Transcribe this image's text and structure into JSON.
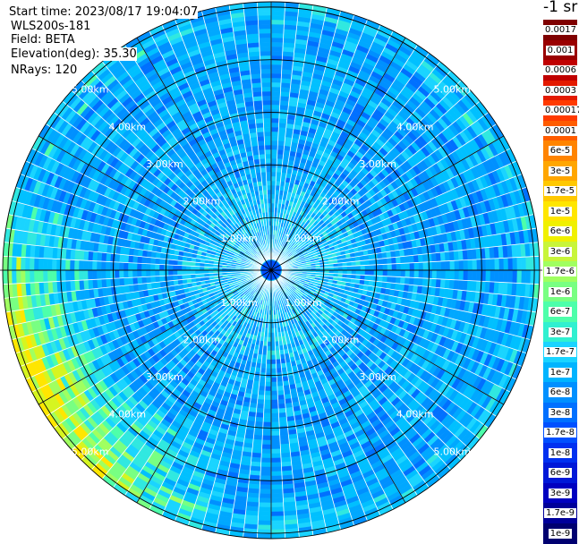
{
  "header": {
    "start_time": "Start time: 2023/08/17 19:04:07",
    "device": "WLS200s-181",
    "field": "Field: BETA",
    "elevation": "Elevation(deg): 35.30",
    "nrays": "NRays: 120"
  },
  "colorbar": {
    "unit": "-1 sr",
    "ticks": [
      "0.0017",
      "0.001",
      "0.0006",
      "0.0003",
      "0.00017",
      "0.0001",
      "6e-5",
      "3e-5",
      "1.7e-5",
      "1e-5",
      "6e-6",
      "3e-6",
      "1.7e-6",
      "1e-6",
      "6e-7",
      "3e-7",
      "1.7e-7",
      "1e-7",
      "6e-8",
      "3e-8",
      "1.7e-8",
      "1e-8",
      "6e-9",
      "3e-9",
      "1.7e-9",
      "1e-9"
    ],
    "colors": [
      "#7f0000",
      "#9a0000",
      "#c00000",
      "#e31a00",
      "#ff3a00",
      "#ff5c00",
      "#ff8400",
      "#ffa600",
      "#ffc800",
      "#ffe600",
      "#f0f000",
      "#c8f53a",
      "#a0ff60",
      "#78ff82",
      "#4dffaa",
      "#30f0d0",
      "#1ad4ff",
      "#00b4ff",
      "#0090ff",
      "#0070ff",
      "#0050ff",
      "#0030f0",
      "#0018d8",
      "#0000c0",
      "#00009a",
      "#000070"
    ]
  },
  "chart_data": {
    "type": "heatmap",
    "projection": "polar PPI",
    "rays": 120,
    "range_rings_km": [
      1,
      2,
      3,
      4,
      5
    ],
    "range_labels": [
      "1.00km",
      "2.00km",
      "3.00km",
      "4.00km",
      "5.00km"
    ],
    "max_range_km": 5.1,
    "spokes_deg": 30,
    "value_range": [
      1e-09,
      0.0017
    ],
    "scale": "log",
    "dominant_values": "mostly 1e-7 to 1e-8 (blue); up to 1e-5 (yellow) toward west-southwest edge"
  }
}
